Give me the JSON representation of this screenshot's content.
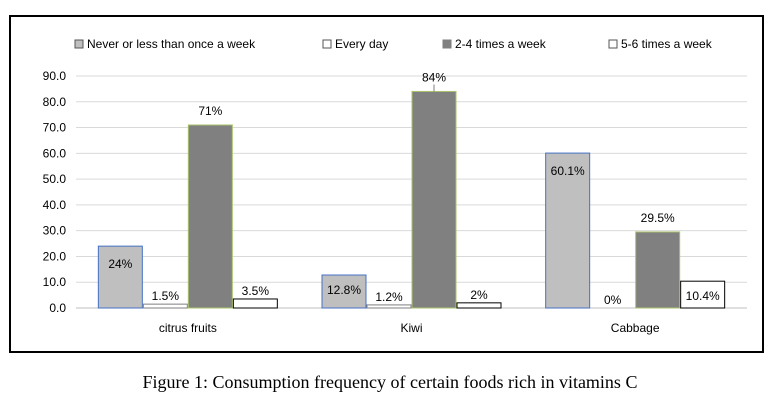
{
  "caption": "Figure 1: Consumption frequency of certain foods rich in vitamins C",
  "chart_data": {
    "type": "bar",
    "categories": [
      "citrus fruits",
      "Kiwi",
      "Cabbage"
    ],
    "series": [
      {
        "name": "Never or less than once a week",
        "values": [
          24,
          12.8,
          60.1
        ],
        "labels": [
          "24%",
          "12.8%",
          "60.1%"
        ],
        "color": "#bfbfbf",
        "stroke": "#4472c4"
      },
      {
        "name": "Every day",
        "values": [
          1.5,
          1.2,
          0
        ],
        "labels": [
          "1.5%",
          "1.2%",
          "0%"
        ],
        "color": "#ffffff",
        "stroke": "#7f7f7f"
      },
      {
        "name": "2-4 times a week",
        "values": [
          71,
          84,
          29.5
        ],
        "labels": [
          "71%",
          "84%",
          "29.5%"
        ],
        "color": "#808080",
        "stroke": "#a9c36a"
      },
      {
        "name": "5-6 times a week",
        "values": [
          3.5,
          2,
          10.4
        ],
        "labels": [
          "3.5%",
          "2%",
          "10.4%"
        ],
        "color": "#ffffff",
        "stroke": "#000000"
      }
    ],
    "y_ticks": [
      "0.0",
      "10.0",
      "20.0",
      "30.0",
      "40.0",
      "50.0",
      "60.0",
      "70.0",
      "80.0",
      "90.0"
    ],
    "ylim": [
      0,
      90
    ],
    "grid": true,
    "legend_position": "top"
  }
}
